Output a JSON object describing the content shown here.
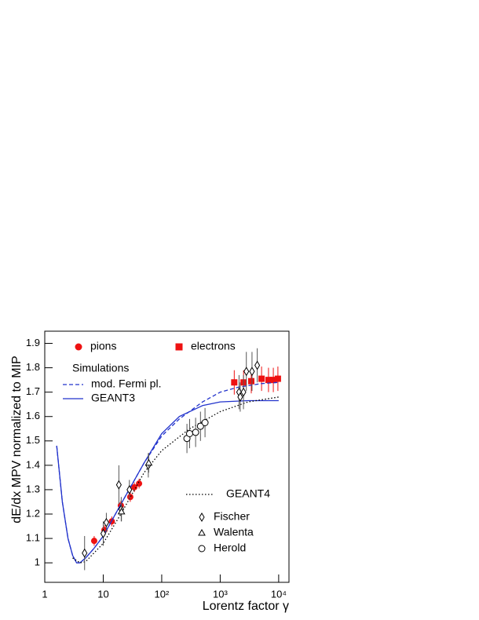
{
  "chart_data": {
    "type": "scatter",
    "xlabel": "Lorentz factor γ",
    "ylabel": "dE/dx MPV normalized to MIP",
    "xscale": "log",
    "xlim": [
      1,
      15000
    ],
    "ylim": [
      0.92,
      1.95
    ],
    "xticks": [
      1,
      10,
      {
        "value": 100,
        "label": "10²"
      },
      {
        "value": 1000,
        "label": "10³"
      },
      {
        "value": 10000,
        "label": "10⁴"
      }
    ],
    "yticks": [
      1,
      1.1,
      1.2,
      1.3,
      1.4,
      1.5,
      1.6,
      1.7,
      1.8,
      1.9
    ],
    "legend_heading": "Simulations",
    "series": [
      {
        "name": "pions",
        "color": "#ee1111",
        "marker": "circle",
        "x": [
          7,
          10.5,
          14,
          20,
          29,
          34,
          41
        ],
        "values": [
          1.09,
          1.135,
          1.17,
          1.235,
          1.27,
          1.31,
          1.325
        ],
        "errors": [
          0.02,
          0.02,
          0.02,
          0.02,
          0.02,
          0.02,
          0.02
        ]
      },
      {
        "name": "electrons",
        "color": "#ee1111",
        "marker": "square",
        "x": [
          1740,
          2510,
          3400,
          5100,
          6700,
          8100,
          9700
        ],
        "values": [
          1.74,
          1.74,
          1.745,
          1.755,
          1.75,
          1.75,
          1.755
        ],
        "errors": [
          0.05,
          0.05,
          0.05,
          0.05,
          0.05,
          0.05,
          0.05
        ]
      },
      {
        "name": "mod. Fermi pl.",
        "color": "#2233cc",
        "line": "dashed",
        "x": [
          1.6,
          2,
          2.5,
          3,
          3.5,
          4,
          5,
          7,
          10,
          20,
          50,
          100,
          200,
          500,
          1000,
          2000,
          5000,
          10000
        ],
        "values": [
          1.48,
          1.25,
          1.1,
          1.03,
          1.0,
          1.0,
          1.02,
          1.06,
          1.11,
          1.24,
          1.41,
          1.52,
          1.59,
          1.66,
          1.7,
          1.72,
          1.735,
          1.74
        ]
      },
      {
        "name": "GEANT3",
        "color": "#2233cc",
        "line": "solid",
        "x": [
          1.6,
          2,
          2.5,
          3,
          3.5,
          4,
          5,
          7,
          10,
          20,
          50,
          100,
          200,
          500,
          1000,
          3000,
          10000
        ],
        "values": [
          1.48,
          1.25,
          1.1,
          1.03,
          1.0,
          1.0,
          1.02,
          1.06,
          1.11,
          1.24,
          1.41,
          1.53,
          1.6,
          1.645,
          1.66,
          1.665,
          1.665
        ]
      },
      {
        "name": "GEANT4",
        "color": "#000000",
        "line": "dotted",
        "x": [
          3,
          4,
          5,
          10,
          20,
          50,
          100,
          300,
          1000,
          3000,
          10000
        ],
        "values": [
          1.02,
          1.0,
          1.005,
          1.08,
          1.2,
          1.37,
          1.46,
          1.55,
          1.62,
          1.66,
          1.68
        ]
      },
      {
        "name": "Fischer",
        "color": "#000000",
        "marker": "diamond-open",
        "x": [
          4.8,
          10,
          11.3,
          18.5,
          20.3,
          28,
          59,
          2100,
          2200,
          2500,
          2800,
          3500,
          4300
        ],
        "values": [
          1.04,
          1.12,
          1.165,
          1.32,
          1.22,
          1.3,
          1.4,
          1.7,
          1.68,
          1.7,
          1.785,
          1.785,
          1.81
        ],
        "errors": [
          0.07,
          0.05,
          0.04,
          0.08,
          0.05,
          0.04,
          0.05,
          0.07,
          0.06,
          0.07,
          0.08,
          0.08,
          0.07
        ]
      },
      {
        "name": "Walenta",
        "color": "#000000",
        "marker": "triangle-open",
        "x": [
          20.5,
          60
        ],
        "values": [
          1.21,
          1.41
        ],
        "errors": [
          0.04,
          0.04
        ]
      },
      {
        "name": "Herold",
        "color": "#000000",
        "marker": "circle-open",
        "x": [
          270,
          300,
          380,
          460,
          550
        ],
        "values": [
          1.51,
          1.53,
          1.535,
          1.56,
          1.575
        ],
        "errors": [
          0.06,
          0.06,
          0.06,
          0.06,
          0.06
        ]
      }
    ]
  }
}
